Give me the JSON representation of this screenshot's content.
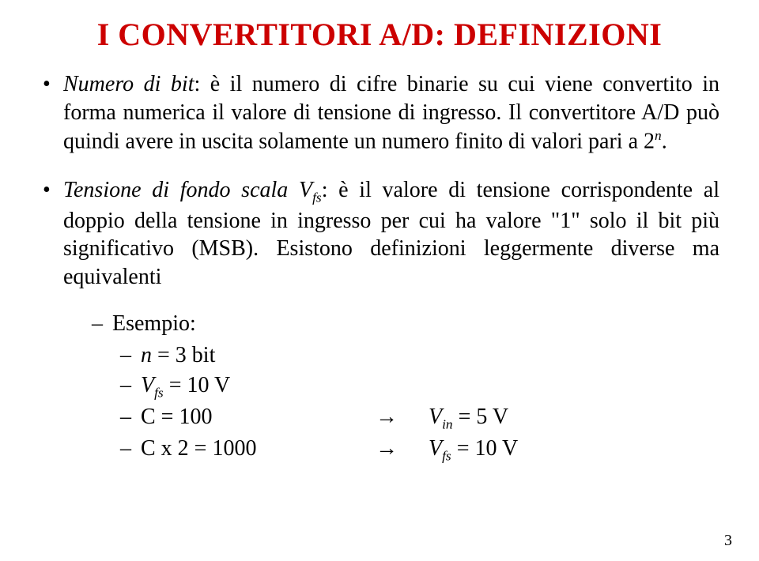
{
  "title": "I CONVERTITORI A/D: DEFINIZIONI",
  "title_color": "#cc0000",
  "bullets": {
    "b1": {
      "term": "Numero di bit",
      "text_a": ": è il numero di cifre binarie su cui viene convertito in forma numerica il valore di tensione di ingresso. Il convertitore A/D può quindi avere in uscita solamente un numero finito di valori pari a 2",
      "exp": "n",
      "text_b": "."
    },
    "b2": {
      "term": "Tensione di fondo scala V",
      "term_sub": "fs",
      "text_a": ": è il valore di tensione corrispondente al doppio della tensione in ingresso per cui ha valore \"1\" solo il bit più significativo (MSB). Esistono definizioni leggermente diverse ma equivalenti"
    }
  },
  "example": {
    "label": "Esempio:",
    "rows": {
      "r1": {
        "left_var": "n",
        "left_rest": " = 3 bit"
      },
      "r2": {
        "left_var": "V",
        "left_sub": "fs",
        "left_rest": " = 10 V"
      },
      "r3": {
        "left_plain": "C = 100",
        "arrow": "→",
        "right_var": "V",
        "right_sub": "in",
        "right_rest": " = 5 V"
      },
      "r4": {
        "left_plain": "C x 2 = 1000",
        "arrow": "→",
        "right_var": "V",
        "right_sub": "fs",
        "right_rest": " = 10 V"
      }
    }
  },
  "page_number": "3",
  "colors": {
    "title": "#cc0000",
    "body": "#000000",
    "background": "#ffffff"
  },
  "fonts": {
    "family": "Times New Roman",
    "title_size_pt": 30,
    "body_size_pt": 21
  }
}
